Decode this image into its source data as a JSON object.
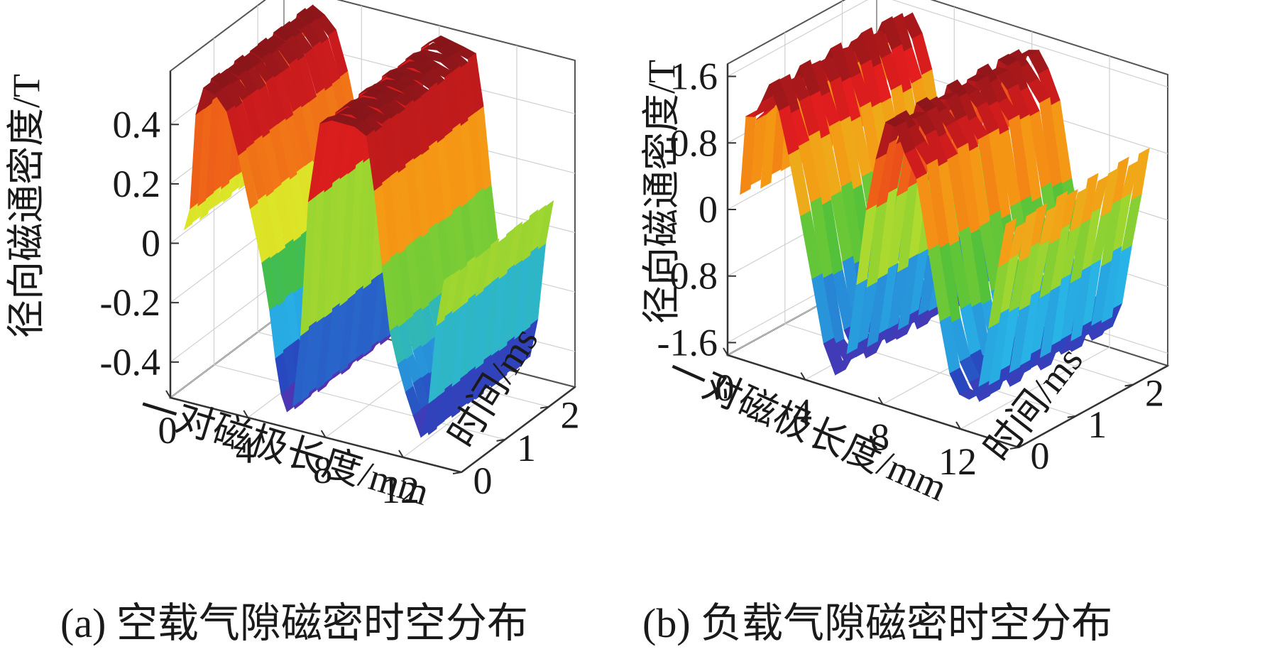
{
  "chart_data": [
    {
      "type": "surface3d",
      "caption": "(a) 空载气隙磁密时空分布",
      "xlabel": "一对磁极长度/mm",
      "ylabel": "时间/ms",
      "zlabel": "径向磁通密度/T",
      "x_ticks": [
        "0",
        "4",
        "8",
        "12"
      ],
      "y_ticks": [
        "0",
        "1",
        "2"
      ],
      "z_ticks": [
        "-0.4",
        "-0.2",
        "0",
        "0.2",
        "0.4"
      ],
      "xlim": [
        0,
        15
      ],
      "ylim": [
        0,
        2.6
      ],
      "zlim": [
        -0.52,
        0.58
      ],
      "x": [
        0.6,
        0.9,
        1.2,
        1.6,
        2.2,
        2.8,
        3.4,
        4.0,
        4.6,
        5.0,
        5.3,
        5.6,
        5.9,
        6.2,
        6.6,
        7.0,
        7.6,
        8.2,
        8.8,
        9.4,
        10.0,
        10.4,
        10.8,
        11.2,
        11.6,
        12.0,
        12.4,
        12.8,
        13.2,
        13.6,
        14.0
      ],
      "z": [
        0.05,
        0.12,
        0.45,
        0.55,
        0.53,
        0.48,
        0.35,
        0.18,
        0.0,
        -0.15,
        -0.3,
        -0.42,
        -0.48,
        -0.45,
        -0.2,
        0.25,
        0.52,
        0.55,
        0.55,
        0.54,
        0.52,
        0.35,
        0.1,
        -0.12,
        -0.22,
        -0.3,
        -0.38,
        -0.45,
        -0.32,
        -0.05,
        0.1
      ]
    },
    {
      "type": "surface3d",
      "caption": "(b) 负载气隙磁密时空分布",
      "xlabel": "一对磁极长度/mm",
      "ylabel": "时间/ms",
      "zlabel": "径向磁通密度/T",
      "x_ticks": [
        "0",
        "4",
        "8",
        "12"
      ],
      "y_ticks": [
        "0",
        "1",
        "2"
      ],
      "z_ticks": [
        "-1.6",
        "-0.8",
        "0",
        "0.8",
        "1.6"
      ],
      "xlim": [
        0,
        15
      ],
      "ylim": [
        0,
        2.6
      ],
      "zlim": [
        -1.75,
        1.75
      ],
      "x": [
        0.5,
        0.8,
        1.2,
        1.6,
        2.0,
        2.5,
        3.0,
        3.6,
        4.2,
        4.8,
        5.4,
        6.0,
        6.5,
        7.0,
        7.5,
        8.0,
        8.5,
        9.0,
        9.6,
        10.2,
        10.8,
        11.3,
        11.8,
        12.3,
        12.8,
        13.3,
        13.8,
        14.2
      ],
      "z": [
        0.2,
        1.1,
        1.2,
        1.45,
        1.6,
        1.3,
        0.9,
        0.2,
        -0.6,
        -1.3,
        -1.55,
        -1.3,
        -0.5,
        0.5,
        1.2,
        1.6,
        1.55,
        1.35,
        1.1,
        0.2,
        -0.6,
        -1.1,
        -1.35,
        -1.45,
        -1.2,
        -0.4,
        0.3,
        0.8
      ]
    }
  ]
}
